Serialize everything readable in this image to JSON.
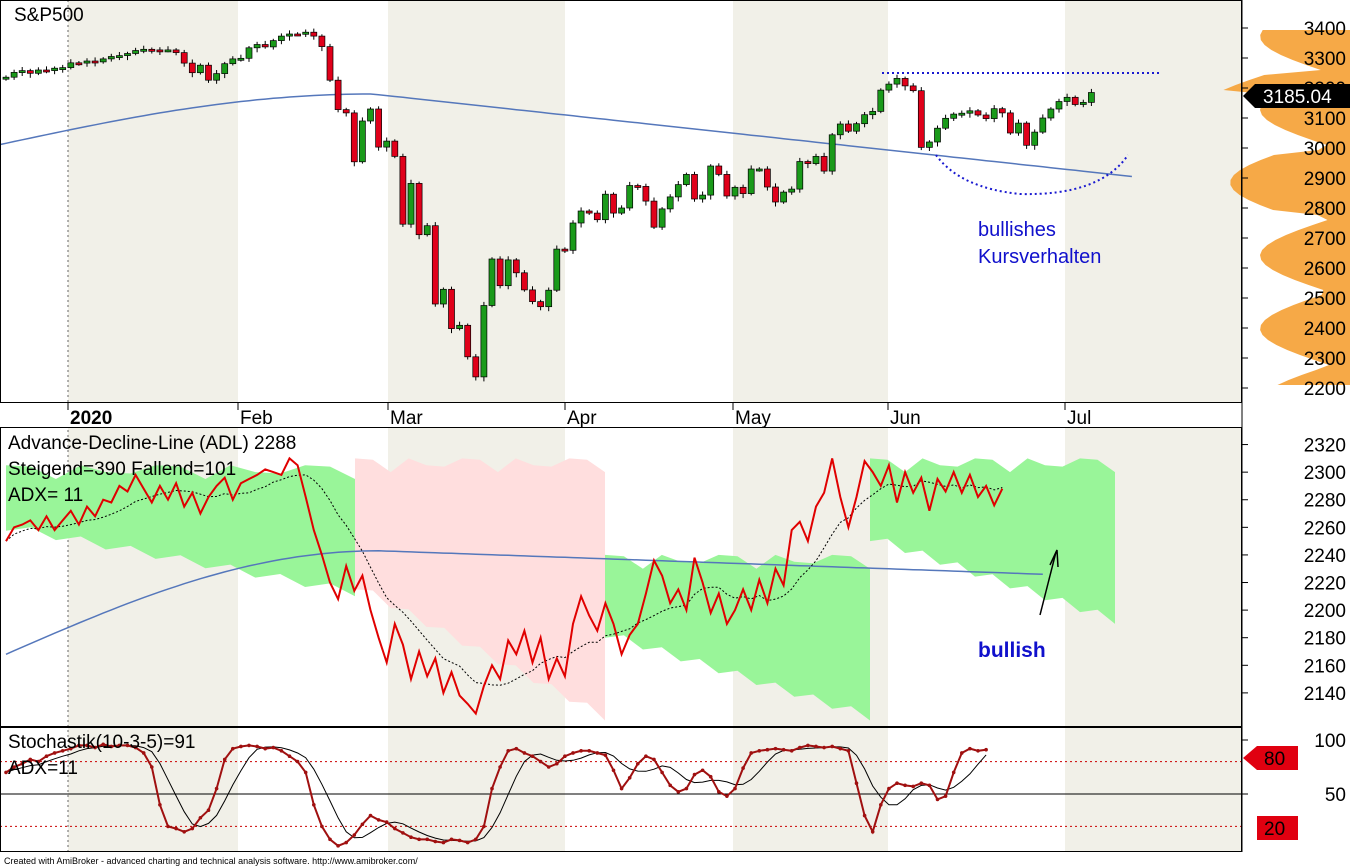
{
  "footer": "Created with AmiBroker - advanced charting and technical analysis software. http://www.amibroker.com/",
  "colors": {
    "up": "#1a9a1a",
    "down": "#e0001a",
    "ma": "#5577bb",
    "adl": "#e00000",
    "cloud_up": "#99f599",
    "cloud_down": "#ffdede",
    "stoch": "#a01010",
    "annot": "#1010cc",
    "profile": "#f5a033"
  },
  "chart_data": [
    {
      "type": "candlestick",
      "title": "S&P500",
      "current_label": "3185.04",
      "y_ticks": [
        "3400",
        "3300",
        "3200",
        "3100",
        "3000",
        "2900",
        "2800",
        "2700",
        "2600",
        "2500",
        "2400",
        "2300",
        "2200"
      ],
      "ylim": [
        2160,
        3480
      ],
      "x_tick_labels": [
        "2020",
        "Feb",
        "Mar",
        "Apr",
        "May",
        "Jun",
        "Jul"
      ],
      "annotation": [
        "bullishes",
        "Kursverhalten"
      ],
      "resistance_level": 3250,
      "closes": [
        3236,
        3252,
        3258,
        3249,
        3260,
        3258,
        3266,
        3268,
        3284,
        3283,
        3290,
        3287,
        3297,
        3305,
        3308,
        3315,
        3325,
        3329,
        3327,
        3325,
        3327,
        3318,
        3283,
        3251,
        3276,
        3226,
        3248,
        3281,
        3297,
        3299,
        3334,
        3345,
        3337,
        3358,
        3373,
        3380,
        3379,
        3386,
        3373,
        3338,
        3226,
        3128,
        3117,
        2954,
        3090,
        3130,
        3003,
        3023,
        2972,
        2746,
        2882,
        2711,
        2741,
        2480,
        2529,
        2398,
        2409,
        2304,
        2237,
        2475,
        2630,
        2541,
        2627,
        2584,
        2527,
        2488,
        2471,
        2526,
        2663,
        2659,
        2750,
        2790,
        2783,
        2761,
        2846,
        2783,
        2800,
        2875,
        2872,
        2823,
        2736,
        2797,
        2837,
        2878,
        2912,
        2830,
        2843,
        2940,
        2912,
        2840,
        2869,
        2848,
        2930,
        2930,
        2870,
        2820,
        2853,
        2863,
        2955,
        2948,
        2972,
        2923,
        3044,
        3080,
        3056,
        3081,
        3111,
        3122,
        3193,
        3213,
        3232,
        3207,
        3191,
        3002,
        3020,
        3066,
        3099,
        3113,
        3116,
        3124,
        3110,
        3098,
        3131,
        3117,
        3050,
        3083,
        3009,
        3053,
        3100,
        3130,
        3155,
        3169,
        3145,
        3152,
        3185
      ],
      "ma_start": 3010,
      "ma_peak": 3180,
      "ma_end": 2905
    },
    {
      "type": "line",
      "title": "Advance-Decline-Line (ADL) 2288",
      "subtitle": "Steigend=390  Fallend=101",
      "adx_label": "ADX= 11",
      "annotation": "bullish",
      "y_ticks": [
        "2320",
        "2300",
        "2280",
        "2260",
        "2240",
        "2220",
        "2200",
        "2180",
        "2160",
        "2140"
      ],
      "ylim": [
        2116,
        2332
      ],
      "values": [
        2250,
        2260,
        2262,
        2265,
        2258,
        2268,
        2258,
        2265,
        2272,
        2262,
        2275,
        2268,
        2280,
        2278,
        2290,
        2286,
        2298,
        2288,
        2278,
        2290,
        2280,
        2292,
        2275,
        2285,
        2270,
        2282,
        2290,
        2296,
        2280,
        2292,
        2295,
        2298,
        2302,
        2300,
        2298,
        2310,
        2305,
        2282,
        2258,
        2240,
        2220,
        2208,
        2232,
        2214,
        2225,
        2200,
        2180,
        2162,
        2190,
        2175,
        2150,
        2170,
        2152,
        2165,
        2140,
        2155,
        2138,
        2132,
        2125,
        2145,
        2160,
        2150,
        2178,
        2168,
        2185,
        2162,
        2180,
        2150,
        2165,
        2152,
        2190,
        2210,
        2196,
        2185,
        2205,
        2190,
        2168,
        2182,
        2190,
        2212,
        2236,
        2225,
        2205,
        2215,
        2200,
        2238,
        2220,
        2198,
        2212,
        2190,
        2200,
        2215,
        2200,
        2222,
        2205,
        2230,
        2218,
        2258,
        2264,
        2250,
        2275,
        2285,
        2310,
        2282,
        2260,
        2282,
        2308,
        2300,
        2290,
        2305,
        2278,
        2300,
        2285,
        2296,
        2272,
        2295,
        2286,
        2300,
        2285,
        2298,
        2282,
        2290,
        2276,
        2288
      ]
    },
    {
      "type": "line",
      "title": "Stochastik(10-3-5)=91",
      "adx_label": "ADX=11",
      "y_ticks": [
        "100",
        "50"
      ],
      "levels": [
        "80",
        "20"
      ],
      "ylim": [
        0,
        100
      ],
      "values": [
        70,
        75,
        78,
        82,
        80,
        85,
        88,
        90,
        92,
        95,
        95,
        93,
        96,
        94,
        95,
        95,
        93,
        88,
        75,
        40,
        20,
        18,
        15,
        18,
        28,
        35,
        55,
        82,
        92,
        94,
        95,
        94,
        92,
        93,
        90,
        85,
        80,
        70,
        40,
        20,
        8,
        2,
        5,
        12,
        22,
        30,
        26,
        24,
        18,
        14,
        10,
        8,
        8,
        6,
        5,
        8,
        7,
        5,
        8,
        20,
        55,
        75,
        90,
        92,
        88,
        85,
        80,
        75,
        78,
        85,
        88,
        90,
        90,
        88,
        86,
        72,
        55,
        65,
        78,
        85,
        82,
        70,
        58,
        52,
        55,
        68,
        72,
        66,
        52,
        48,
        55,
        74,
        88,
        90,
        91,
        92,
        91,
        90,
        93,
        95,
        94,
        93,
        94,
        92,
        90,
        60,
        30,
        15,
        40,
        55,
        60,
        58,
        57,
        60,
        58,
        45,
        48,
        70,
        88,
        92,
        90,
        91
      ]
    }
  ]
}
